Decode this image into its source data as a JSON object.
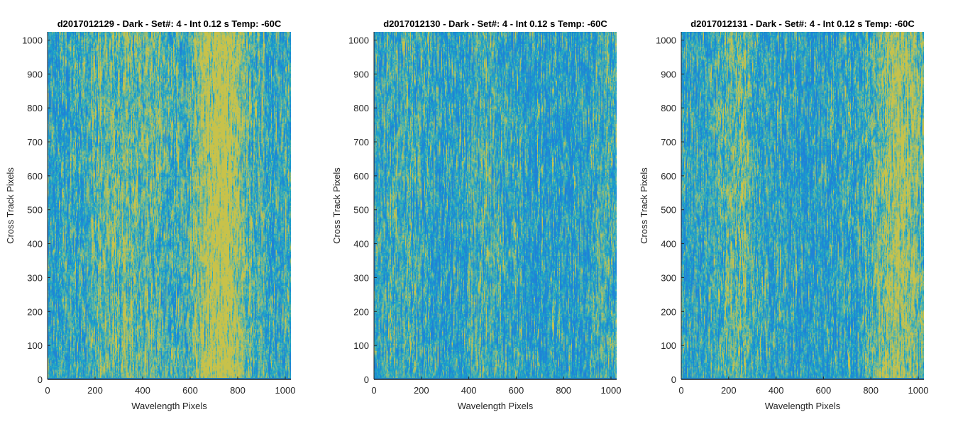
{
  "chart_data": [
    {
      "type": "heatmap",
      "title": "d2017012129 - Dark - Set#: 4 - Int 0.12 s Temp: -60C",
      "xlabel": "Wavelength Pixels",
      "ylabel": "Cross Track Pixels",
      "xlim": [
        0,
        1024
      ],
      "ylim": [
        0,
        1024
      ],
      "xticks": [
        0,
        200,
        400,
        600,
        800,
        1000
      ],
      "yticks": [
        0,
        100,
        200,
        300,
        400,
        500,
        600,
        700,
        800,
        900,
        1000
      ],
      "colormap": [
        "#1f83d6",
        "#1aa4c8",
        "#6cb89a",
        "#c8c24a"
      ],
      "bright_bands": [
        {
          "x": 260,
          "strength": 0.28
        },
        {
          "x": 420,
          "strength": 0.25
        },
        {
          "x": 700,
          "strength": 0.55
        },
        {
          "x": 780,
          "strength": 0.3
        }
      ],
      "background_level": 0.35,
      "bottom_row_dark": true,
      "grid": false
    },
    {
      "type": "heatmap",
      "title": "d2017012130 - Dark - Set#: 4 - Int 0.12 s Temp: -60C",
      "xlabel": "Wavelength Pixels",
      "ylabel": "Cross Track Pixels",
      "xlim": [
        0,
        1024
      ],
      "ylim": [
        0,
        1024
      ],
      "xticks": [
        0,
        200,
        400,
        600,
        800,
        1000
      ],
      "yticks": [
        0,
        100,
        200,
        300,
        400,
        500,
        600,
        700,
        800,
        900,
        1000
      ],
      "colormap": [
        "#1f83d6",
        "#1aa4c8",
        "#6cb89a",
        "#c8c24a"
      ],
      "bright_bands": [
        {
          "x": 120,
          "strength": 0.2
        },
        {
          "x": 480,
          "strength": 0.25
        },
        {
          "x": 1000,
          "strength": 0.18
        }
      ],
      "background_level": 0.27,
      "bottom_row_dark": true,
      "grid": false
    },
    {
      "type": "heatmap",
      "title": "d2017012131 - Dark - Set#: 4 - Int 0.12 s Temp: -60C",
      "xlabel": "Wavelength Pixels",
      "ylabel": "Cross Track Pixels",
      "xlim": [
        0,
        1024
      ],
      "ylim": [
        0,
        1024
      ],
      "xticks": [
        0,
        200,
        400,
        600,
        800,
        1000
      ],
      "yticks": [
        0,
        100,
        200,
        300,
        400,
        500,
        600,
        700,
        800,
        900,
        1000
      ],
      "colormap": [
        "#1f83d6",
        "#1aa4c8",
        "#6cb89a",
        "#c8c24a"
      ],
      "bright_bands": [
        {
          "x": 220,
          "strength": 0.3
        },
        {
          "x": 880,
          "strength": 0.42
        },
        {
          "x": 960,
          "strength": 0.3
        }
      ],
      "background_level": 0.3,
      "bottom_row_dark": true,
      "grid": false
    }
  ]
}
